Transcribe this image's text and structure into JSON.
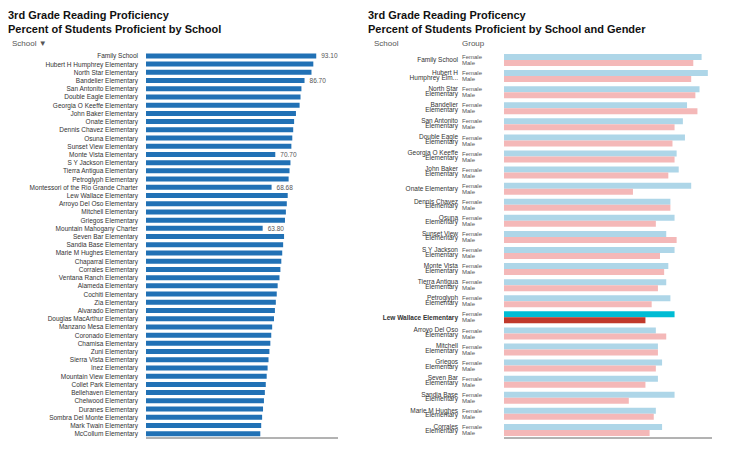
{
  "chart_data": [
    {
      "type": "bar",
      "orientation": "horizontal",
      "title": "3rd Grade Reading Proficiency",
      "subtitle": "Percent of Students Proficient by School",
      "annotations": [
        "School ▼"
      ],
      "categories": [
        "Family School",
        "Hubert H Humphrey Elementary",
        "North Star Elementary",
        "Bandelier Elementary",
        "San Antonito Elementary",
        "Double Eagle Elementary",
        "Georgia O Keeffe Elementary",
        "John Baker Elementary",
        "Onate Elementary",
        "Dennis Chavez Elementary",
        "Osuna Elementary",
        "Sunset View Elementary",
        "Monte Vista Elementary",
        "S Y Jackson Elementary",
        "Tierra Antigua Elementary",
        "Petroglyph Elementary",
        "Montessori of the Rio Grande Charter",
        "Lew Wallace Elementary",
        "Arroyo Del Oso Elementary",
        "Mitchell Elementary",
        "Griegos Elementary",
        "Mountain Mahogany Charter",
        "Seven Bar Elementary",
        "Sandia Base Elementary",
        "Marie M Hughes Elementary",
        "Chaparral Elementary",
        "Corrales Elementary",
        "Ventana Ranch Elementary",
        "Alameda Elementary",
        "Cochiti Elementary",
        "Zia Elementary",
        "Alvarado Elementary",
        "Douglas MacArthur Elementary",
        "Manzano Mesa Elementary",
        "Coronado Elementary",
        "Chamisa Elementary",
        "Zuni Elementary",
        "Sierra Vista Elementary",
        "Inez Elementary",
        "Mountain View Elementary",
        "Collet Park Elementary",
        "Bellehaven Elementary",
        "Chelwood Elementary",
        "Duranes Elementary",
        "Sombra Del Monte Elementary",
        "Mark Twain Elementary",
        "McCollum Elementary"
      ],
      "values": [
        93.1,
        91.5,
        90.5,
        86.7,
        85.0,
        84.5,
        84.0,
        82.0,
        81.0,
        80.5,
        80.0,
        79.5,
        70.7,
        79.0,
        78.5,
        78.0,
        68.68,
        77.5,
        77.0,
        76.5,
        76.0,
        63.8,
        75.5,
        75.0,
        74.5,
        74.0,
        73.5,
        73.0,
        72.0,
        71.5,
        71.0,
        70.5,
        70.0,
        69.0,
        68.5,
        68.0,
        67.5,
        67.0,
        66.5,
        66.0,
        65.5,
        65.0,
        64.5,
        64.0,
        63.5,
        63.0,
        62.5
      ],
      "value_labels": [
        "93.10",
        null,
        null,
        "86.70",
        null,
        null,
        null,
        null,
        null,
        null,
        null,
        null,
        "70.70",
        null,
        null,
        null,
        "68.68",
        null,
        null,
        null,
        null,
        "63.80",
        null,
        null,
        null,
        null,
        null,
        null,
        null,
        null,
        null,
        null,
        null,
        null,
        null,
        null,
        null,
        null,
        null,
        null,
        null,
        null,
        null,
        null,
        null,
        null,
        null
      ],
      "color": "#2171b5",
      "xlim": [
        0,
        105
      ],
      "tick_labels": "y"
    },
    {
      "type": "bar",
      "orientation": "horizontal",
      "title": "3rd Grade Reading Proficency",
      "subtitle": "Percent of Students Proficient by School and Gender",
      "annotations": [
        "School",
        "Group"
      ],
      "categories": [
        "Family School",
        "Hubert H\nHumphrey Elm...",
        "North Star\nElementary",
        "Bandelier\nElementary",
        "San Antonito\nElementary",
        "Double Eagle\nElementary",
        "Georgia O Keeffe\nElementary",
        "John Baker\nElementary",
        "Onate Elementary",
        "Dennis Chavez\nElementary",
        "Osuna\nElementary",
        "Sunset View\nElementary",
        "S Y Jackson\nElementary",
        "Monte Vista\nElementary",
        "Tierra Antigua\nElementary",
        "Petroglyph\nElementary",
        "Lew Wallace Elementary",
        "Arroyo Del Oso\nElementary",
        "Mitchell\nElementary",
        "Griegos\nElementary",
        "Seven Bar\nElementary",
        "Sandia Base\nElementary",
        "Marie M Hughes\nElementary",
        "Corrales\nElementary"
      ],
      "series": [
        {
          "name": "Female",
          "color": "#aed6e8",
          "colors": [
            "#aed6e8",
            "#aed6e8",
            "#aed6e8",
            "#aed6e8",
            "#aed6e8",
            "#aed6e8",
            "#aed6e8",
            "#aed6e8",
            "#aed6e8",
            "#aed6e8",
            "#aed6e8",
            "#aed6e8",
            "#aed6e8",
            "#aed6e8",
            "#aed6e8",
            "#aed6e8",
            "#00bcd4",
            "#aed6e8",
            "#aed6e8",
            "#aed6e8",
            "#aed6e8",
            "#aed6e8",
            "#aed6e8",
            "#aed6e8"
          ],
          "values": [
            95,
            98,
            94,
            88,
            86,
            87,
            83,
            84,
            90,
            80,
            82,
            78,
            82,
            79,
            78,
            80,
            82,
            73,
            74,
            76,
            74,
            82,
            73,
            76
          ]
        },
        {
          "name": "Male",
          "color": "#f4b8b8",
          "colors": [
            "#f4b8b8",
            "#f4b8b8",
            "#f4b8b8",
            "#f4b8b8",
            "#f4b8b8",
            "#f4b8b8",
            "#f4b8b8",
            "#f4b8b8",
            "#f4b8b8",
            "#f4b8b8",
            "#f4b8b8",
            "#f4b8b8",
            "#f4b8b8",
            "#f4b8b8",
            "#f4b8b8",
            "#f4b8b8",
            "#c0392b",
            "#f4b8b8",
            "#f4b8b8",
            "#f4b8b8",
            "#f4b8b8",
            "#f4b8b8",
            "#f4b8b8",
            "#f4b8b8"
          ],
          "values": [
            91,
            90,
            92,
            93,
            82,
            81,
            82,
            79,
            62,
            80,
            73,
            83,
            75,
            77,
            74,
            71,
            68,
            78,
            74,
            73,
            68,
            60,
            72,
            70
          ]
        }
      ],
      "xlim": [
        0,
        100
      ],
      "tick_labels": "y"
    }
  ]
}
